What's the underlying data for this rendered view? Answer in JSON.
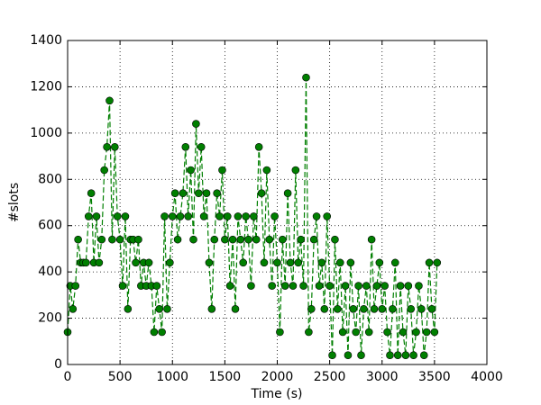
{
  "chart_data": {
    "type": "line",
    "x_label": "Time (s)",
    "y_label": "#slots",
    "xlim": [
      0,
      4000
    ],
    "xticks": [
      0,
      500,
      1000,
      1500,
      2000,
      2500,
      3000,
      3500,
      4000
    ],
    "ylim": [
      0,
      1400
    ],
    "yticks": [
      0,
      200,
      400,
      600,
      800,
      1000,
      1200,
      1400
    ],
    "grid": true,
    "line_style": "dashed",
    "marker": "circle",
    "series": [
      {
        "color": "#007f00",
        "x": [
          0,
          25,
          50,
          75,
          100,
          125,
          150,
          175,
          200,
          225,
          250,
          275,
          300,
          325,
          350,
          375,
          400,
          425,
          450,
          475,
          500,
          525,
          550,
          575,
          600,
          625,
          650,
          675,
          700,
          725,
          750,
          775,
          800,
          825,
          850,
          875,
          900,
          925,
          950,
          975,
          1000,
          1025,
          1050,
          1075,
          1100,
          1125,
          1150,
          1175,
          1200,
          1225,
          1250,
          1275,
          1300,
          1325,
          1350,
          1375,
          1400,
          1425,
          1450,
          1475,
          1500,
          1525,
          1550,
          1575,
          1600,
          1625,
          1650,
          1675,
          1700,
          1725,
          1750,
          1775,
          1800,
          1825,
          1850,
          1875,
          1900,
          1925,
          1950,
          1975,
          2000,
          2025,
          2050,
          2075,
          2100,
          2125,
          2150,
          2175,
          2200,
          2225,
          2250,
          2275,
          2300,
          2325,
          2350,
          2375,
          2400,
          2425,
          2450,
          2475,
          2500,
          2525,
          2550,
          2575,
          2600,
          2625,
          2650,
          2675,
          2700,
          2725,
          2750,
          2775,
          2800,
          2825,
          2850,
          2875,
          2900,
          2925,
          2950,
          2975,
          3000,
          3025,
          3050,
          3075,
          3100,
          3125,
          3150,
          3175,
          3200,
          3225,
          3250,
          3275,
          3300,
          3325,
          3350,
          3375,
          3400,
          3425,
          3450,
          3475,
          3500,
          3525
        ],
        "values": [
          140,
          340,
          240,
          340,
          540,
          440,
          440,
          440,
          640,
          740,
          440,
          640,
          440,
          540,
          840,
          940,
          1140,
          540,
          940,
          640,
          540,
          340,
          640,
          240,
          540,
          540,
          440,
          540,
          340,
          440,
          340,
          440,
          340,
          140,
          340,
          240,
          140,
          640,
          240,
          440,
          640,
          740,
          540,
          640,
          740,
          940,
          640,
          840,
          540,
          1040,
          740,
          940,
          640,
          740,
          440,
          240,
          540,
          740,
          640,
          840,
          540,
          640,
          340,
          540,
          240,
          640,
          540,
          440,
          640,
          540,
          340,
          640,
          540,
          940,
          740,
          440,
          840,
          540,
          340,
          640,
          440,
          140,
          540,
          340,
          740,
          440,
          340,
          840,
          440,
          540,
          340,
          1240,
          140,
          240,
          540,
          640,
          340,
          440,
          240,
          640,
          340,
          40,
          540,
          240,
          440,
          140,
          340,
          40,
          440,
          240,
          140,
          340,
          40,
          240,
          340,
          140,
          540,
          240,
          340,
          440,
          240,
          340,
          140,
          40,
          240,
          440,
          40,
          340,
          140,
          40,
          340,
          240,
          40,
          140,
          340,
          240,
          40,
          140,
          440,
          240,
          140,
          440
        ]
      }
    ]
  }
}
